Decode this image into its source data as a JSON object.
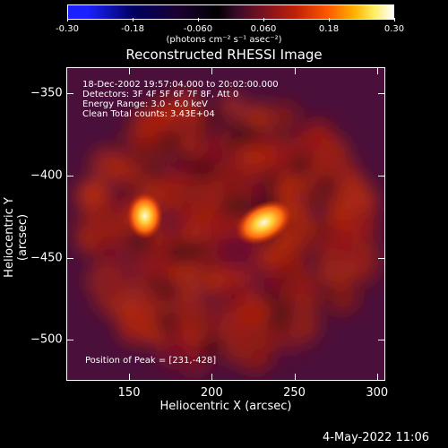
{
  "colorbar": {
    "ticks": [
      "-0.30",
      "-0.18",
      "-0.060",
      "0.060",
      "0.18",
      "0.30"
    ],
    "unit_label": "(photons cm⁻² s⁻¹ asec⁻²)",
    "range": [
      -0.3,
      0.3
    ]
  },
  "title": "Reconstructed RHESSI Image",
  "info": {
    "time_range": "18-Dec-2002 19:57:04.000 to 20:02:00.000",
    "detectors": "Detectors: 3F 4F 5F 6F 7F 8F, Att 0",
    "energy": "Energy Range: 3.0 - 6.0 keV",
    "method_counts": "Clean     Total counts: 3.43E+04",
    "peak": "Position of Peak = [231,-428]"
  },
  "axes": {
    "xlabel": "Heliocentric X (arcsec)",
    "ylabel": "Heliocentric Y (arcsec)",
    "x_ticks": [
      "150",
      "200",
      "250",
      "300"
    ],
    "y_ticks": [
      "-350",
      "-400",
      "-450",
      "-500"
    ],
    "xlim": [
      112,
      305
    ],
    "ylim": [
      -525,
      -334
    ]
  },
  "image_sources": [
    {
      "label": "left source",
      "x": 159,
      "y": -424
    },
    {
      "label": "right source",
      "x": 231,
      "y": -428
    }
  ],
  "footer": "4-May-2022 11:06"
}
